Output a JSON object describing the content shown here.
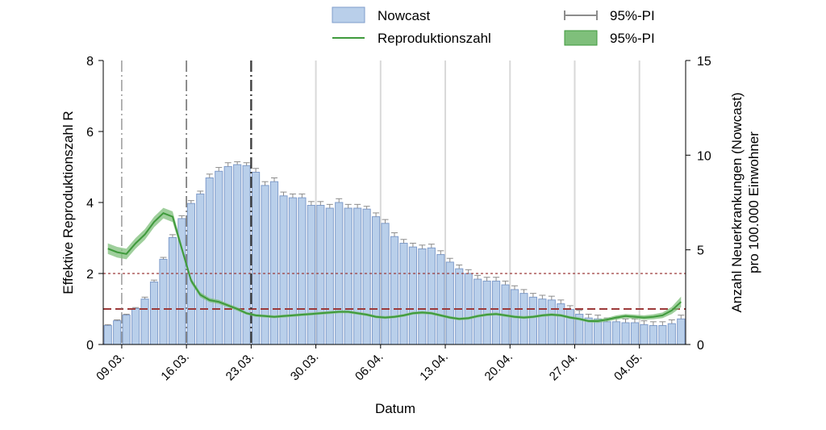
{
  "chart_data": {
    "type": "bar",
    "xlabel": "Datum",
    "ylabel_left": "Effektive Reproduktionszahl R",
    "ylabel_right": [
      "Anzahl Neuerkrankungen (Nowcast)",
      "pro 100.000 Einwohner"
    ],
    "ylim_left": [
      0,
      8
    ],
    "ylim_right": [
      0,
      15
    ],
    "yticks_left": [
      "0",
      "2",
      "4",
      "6",
      "8"
    ],
    "yticks_right": [
      "0",
      "5",
      "10",
      "15"
    ],
    "date_start": "2020-03-07",
    "date_end": "2020-05-09",
    "x_tick_labels": [
      "09.03.",
      "16.03.",
      "23.03.",
      "30.03.",
      "06.04.",
      "13.04.",
      "20.04.",
      "27.04.",
      "04.05."
    ],
    "x_tick_dates": [
      "2020-03-09",
      "2020-03-16",
      "2020-03-23",
      "2020-03-30",
      "2020-04-06",
      "2020-04-13",
      "2020-04-20",
      "2020-04-27",
      "2020-05-04"
    ],
    "grid_lines_dates": [
      "2020-03-30",
      "2020-04-06",
      "2020-04-13",
      "2020-04-20",
      "2020-04-27",
      "2020-05-04"
    ],
    "event_lines_dates": [
      "2020-03-09",
      "2020-03-16",
      "2020-03-23"
    ],
    "reference_lines_R": [
      1,
      2
    ],
    "legend": {
      "placement": "top",
      "items": [
        {
          "label": "Nowcast",
          "type": "bar"
        },
        {
          "label": "95%-PI",
          "type": "errorbar"
        },
        {
          "label": "Reproduktionszahl",
          "type": "line"
        },
        {
          "label": "95%-PI",
          "type": "band"
        }
      ]
    },
    "series": [
      {
        "name": "Nowcast",
        "axis": "right",
        "x": [
          "2020-03-07",
          "2020-03-08",
          "2020-03-09",
          "2020-03-10",
          "2020-03-11",
          "2020-03-12",
          "2020-03-13",
          "2020-03-14",
          "2020-03-15",
          "2020-03-16",
          "2020-03-17",
          "2020-03-18",
          "2020-03-19",
          "2020-03-20",
          "2020-03-21",
          "2020-03-22",
          "2020-03-23",
          "2020-03-24",
          "2020-03-25",
          "2020-03-26",
          "2020-03-27",
          "2020-03-28",
          "2020-03-29",
          "2020-03-30",
          "2020-03-31",
          "2020-04-01",
          "2020-04-02",
          "2020-04-03",
          "2020-04-04",
          "2020-04-05",
          "2020-04-06",
          "2020-04-07",
          "2020-04-08",
          "2020-04-09",
          "2020-04-10",
          "2020-04-11",
          "2020-04-12",
          "2020-04-13",
          "2020-04-14",
          "2020-04-15",
          "2020-04-16",
          "2020-04-17",
          "2020-04-18",
          "2020-04-19",
          "2020-04-20",
          "2020-04-21",
          "2020-04-22",
          "2020-04-23",
          "2020-04-24",
          "2020-04-25",
          "2020-04-26",
          "2020-04-27",
          "2020-04-28",
          "2020-04-29",
          "2020-04-30",
          "2020-05-01",
          "2020-05-02",
          "2020-05-03",
          "2020-05-04",
          "2020-05-05",
          "2020-05-06",
          "2020-05-07",
          "2020-05-08"
        ],
        "values": [
          1.0,
          1.25,
          1.55,
          1.9,
          2.4,
          3.3,
          4.5,
          5.65,
          6.65,
          7.45,
          7.95,
          8.8,
          9.15,
          9.4,
          9.5,
          9.45,
          9.1,
          8.4,
          8.6,
          7.85,
          7.75,
          7.75,
          7.35,
          7.35,
          7.2,
          7.5,
          7.2,
          7.2,
          7.15,
          6.75,
          6.4,
          5.7,
          5.35,
          5.15,
          5.05,
          5.1,
          4.75,
          4.35,
          4.0,
          3.75,
          3.45,
          3.35,
          3.35,
          3.15,
          2.9,
          2.7,
          2.5,
          2.4,
          2.35,
          2.15,
          1.85,
          1.6,
          1.4,
          1.35,
          1.2,
          1.2,
          1.15,
          1.15,
          1.05,
          1.0,
          1.0,
          1.1,
          1.35
        ],
        "upper": [
          1.05,
          1.3,
          1.6,
          1.95,
          2.5,
          3.4,
          4.6,
          5.8,
          6.8,
          7.6,
          8.1,
          9.0,
          9.35,
          9.6,
          9.65,
          9.6,
          9.3,
          8.6,
          8.8,
          8.05,
          7.95,
          7.95,
          7.55,
          7.55,
          7.4,
          7.7,
          7.4,
          7.4,
          7.3,
          6.95,
          6.6,
          5.9,
          5.55,
          5.35,
          5.25,
          5.3,
          4.95,
          4.55,
          4.2,
          3.95,
          3.65,
          3.55,
          3.55,
          3.35,
          3.1,
          2.9,
          2.7,
          2.6,
          2.55,
          2.35,
          2.05,
          1.8,
          1.6,
          1.55,
          1.4,
          1.4,
          1.35,
          1.35,
          1.25,
          1.2,
          1.2,
          1.3,
          1.55
        ]
      },
      {
        "name": "Reproduktionszahl",
        "axis": "left",
        "x": [
          "2020-03-07",
          "2020-03-08",
          "2020-03-09",
          "2020-03-10",
          "2020-03-11",
          "2020-03-12",
          "2020-03-13",
          "2020-03-14",
          "2020-03-15",
          "2020-03-16",
          "2020-03-17",
          "2020-03-18",
          "2020-03-19",
          "2020-03-20",
          "2020-03-21",
          "2020-03-22",
          "2020-03-23",
          "2020-03-24",
          "2020-03-25",
          "2020-03-26",
          "2020-03-27",
          "2020-03-28",
          "2020-03-29",
          "2020-03-30",
          "2020-03-31",
          "2020-04-01",
          "2020-04-02",
          "2020-04-03",
          "2020-04-04",
          "2020-04-05",
          "2020-04-06",
          "2020-04-07",
          "2020-04-08",
          "2020-04-09",
          "2020-04-10",
          "2020-04-11",
          "2020-04-12",
          "2020-04-13",
          "2020-04-14",
          "2020-04-15",
          "2020-04-16",
          "2020-04-17",
          "2020-04-18",
          "2020-04-19",
          "2020-04-20",
          "2020-04-21",
          "2020-04-22",
          "2020-04-23",
          "2020-04-24",
          "2020-04-25",
          "2020-04-26",
          "2020-04-27",
          "2020-04-28",
          "2020-04-29",
          "2020-04-30",
          "2020-05-01",
          "2020-05-02",
          "2020-05-03",
          "2020-05-04",
          "2020-05-05",
          "2020-05-06",
          "2020-05-07",
          "2020-05-08"
        ],
        "values": [
          2.7,
          2.6,
          2.55,
          2.85,
          3.1,
          3.45,
          3.7,
          3.6,
          2.7,
          1.8,
          1.4,
          1.25,
          1.2,
          1.1,
          1.0,
          0.88,
          0.82,
          0.8,
          0.78,
          0.8,
          0.82,
          0.84,
          0.86,
          0.88,
          0.9,
          0.92,
          0.92,
          0.88,
          0.84,
          0.78,
          0.76,
          0.78,
          0.82,
          0.88,
          0.9,
          0.88,
          0.82,
          0.76,
          0.72,
          0.74,
          0.8,
          0.84,
          0.86,
          0.82,
          0.78,
          0.76,
          0.78,
          0.82,
          0.84,
          0.82,
          0.76,
          0.72,
          0.66,
          0.66,
          0.7,
          0.76,
          0.8,
          0.78,
          0.76,
          0.78,
          0.82,
          0.96,
          1.2
        ],
        "lower": [
          2.55,
          2.45,
          2.4,
          2.7,
          2.95,
          3.3,
          3.55,
          3.45,
          2.6,
          1.72,
          1.33,
          1.19,
          1.14,
          1.05,
          0.95,
          0.84,
          0.78,
          0.76,
          0.74,
          0.76,
          0.78,
          0.8,
          0.82,
          0.84,
          0.86,
          0.88,
          0.88,
          0.84,
          0.8,
          0.74,
          0.72,
          0.74,
          0.78,
          0.84,
          0.86,
          0.84,
          0.78,
          0.72,
          0.68,
          0.7,
          0.76,
          0.8,
          0.82,
          0.78,
          0.74,
          0.72,
          0.74,
          0.78,
          0.8,
          0.78,
          0.72,
          0.68,
          0.62,
          0.61,
          0.65,
          0.7,
          0.74,
          0.72,
          0.7,
          0.71,
          0.74,
          0.86,
          1.05
        ],
        "upper": [
          2.85,
          2.75,
          2.7,
          3.0,
          3.25,
          3.6,
          3.85,
          3.75,
          2.8,
          1.88,
          1.47,
          1.31,
          1.26,
          1.15,
          1.05,
          0.92,
          0.86,
          0.84,
          0.82,
          0.84,
          0.86,
          0.88,
          0.9,
          0.92,
          0.94,
          0.96,
          0.96,
          0.92,
          0.88,
          0.82,
          0.8,
          0.82,
          0.86,
          0.92,
          0.94,
          0.92,
          0.86,
          0.8,
          0.76,
          0.78,
          0.84,
          0.88,
          0.9,
          0.86,
          0.82,
          0.8,
          0.82,
          0.86,
          0.88,
          0.86,
          0.8,
          0.76,
          0.7,
          0.71,
          0.75,
          0.82,
          0.86,
          0.84,
          0.82,
          0.85,
          0.9,
          1.06,
          1.35
        ]
      }
    ]
  },
  "colors": {
    "bar_fill": "#b9cfea",
    "bar_stroke": "#7f9ccb",
    "errorbar": "#8c8c8c",
    "line": "#3f9a3c",
    "band": "#7fbf7b",
    "ref_line": "#9c3a3a",
    "grid": "#d9d9d9",
    "event_line": "#808080",
    "axis": "#000000"
  }
}
